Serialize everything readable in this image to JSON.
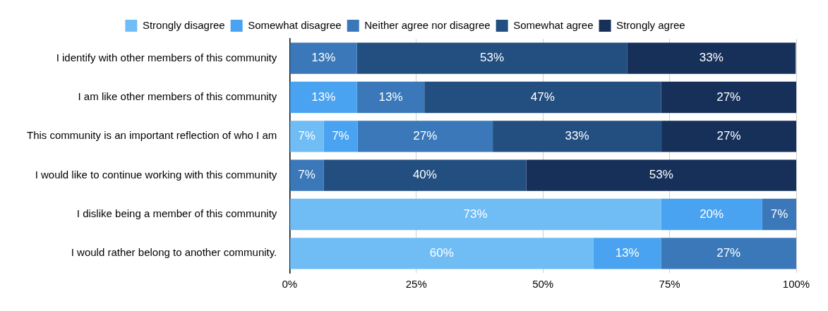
{
  "chart_data": {
    "type": "bar",
    "orientation": "horizontal",
    "stacked": true,
    "legend": "top",
    "grid": "x",
    "categories": [
      "I identify with other members of this community",
      "I am like other members of this community",
      "This community is an important reflection of who I am",
      "I would like to continue working with this community",
      "I dislike being a member of this community",
      "I would rather belong to another community."
    ],
    "xlim": [
      0,
      100
    ],
    "xticks": [
      {
        "value": 0,
        "label": "0%"
      },
      {
        "value": 25,
        "label": "25%"
      },
      {
        "value": 50,
        "label": "50%"
      },
      {
        "value": 75,
        "label": "75%"
      },
      {
        "value": 100,
        "label": "100%"
      }
    ],
    "series": [
      {
        "name": "Strongly disagree",
        "color": "#70bdf6",
        "values": [
          null,
          null,
          6.7,
          null,
          73.3,
          60
        ],
        "value_labels": [
          null,
          null,
          "7%",
          null,
          "73%",
          "60%"
        ]
      },
      {
        "name": "Somewhat disagree",
        "color": "#4aa3f0",
        "values": [
          null,
          13.3,
          6.7,
          null,
          20,
          13.3
        ],
        "value_labels": [
          null,
          "13%",
          "7%",
          null,
          "20%",
          "13%"
        ]
      },
      {
        "name": "Neither agree nor disagree",
        "color": "#3a78b9",
        "values": [
          13.3,
          13.3,
          26.7,
          6.7,
          6.7,
          26.7
        ],
        "value_labels": [
          "13%",
          "13%",
          "27%",
          "7%",
          "7%",
          "27%"
        ]
      },
      {
        "name": "Somewhat agree",
        "color": "#224e80",
        "values": [
          53.3,
          46.7,
          33.3,
          40,
          null,
          null
        ],
        "value_labels": [
          "53%",
          "47%",
          "33%",
          "40%",
          null,
          null
        ]
      },
      {
        "name": "Strongly agree",
        "color": "#16305a",
        "values": [
          33.3,
          26.7,
          26.6,
          53.3,
          null,
          null
        ],
        "value_labels": [
          "33%",
          "27%",
          "27%",
          "53%",
          null,
          null
        ]
      }
    ]
  }
}
